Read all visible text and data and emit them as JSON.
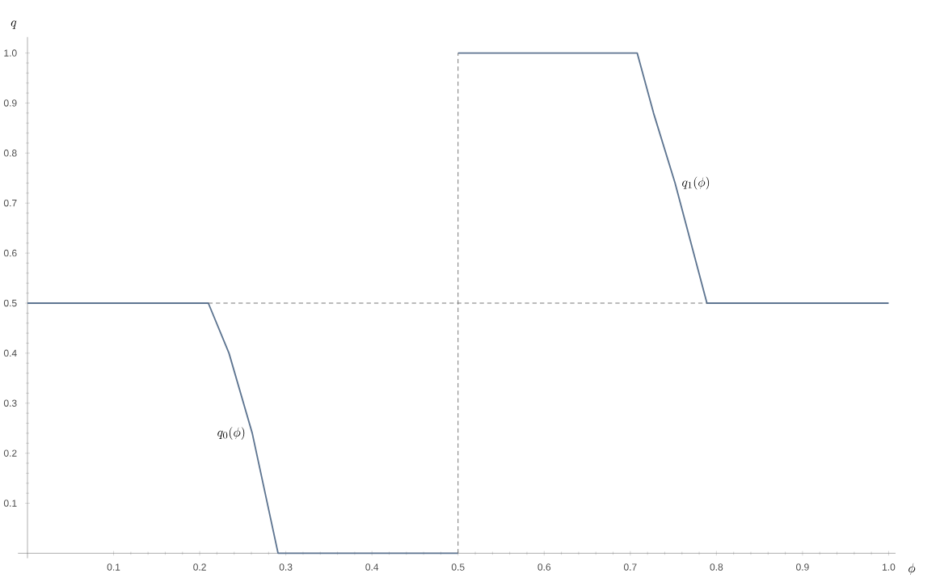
{
  "chart_data": {
    "type": "line",
    "xlabel": "\\phi",
    "ylabel": "q",
    "xlim": [
      -0.011,
      1.008
    ],
    "ylim": [
      -0.01,
      1.032
    ],
    "xticks": [
      0.1,
      0.2,
      0.3,
      0.4,
      0.5,
      0.6,
      0.7,
      0.8,
      0.9,
      {
        "value": 1,
        "label": "1.0"
      }
    ],
    "yticks": [
      0.1,
      0.2,
      0.3,
      0.4,
      0.5,
      0.6,
      0.7,
      0.8,
      0.9,
      {
        "value": 1,
        "label": "1.0"
      }
    ],
    "series": [
      {
        "color": "#5e7591",
        "line_style": "solid",
        "x": [
          0,
          0.21,
          0.234,
          0.261,
          0.291,
          0.5
        ],
        "values": [
          0.5,
          0.5,
          0.4,
          0.24,
          0,
          0
        ]
      },
      {
        "color": "#5e7591",
        "line_style": "solid",
        "x": [
          0.5,
          0.708,
          0.727,
          0.752,
          0.789,
          1.0
        ],
        "values": [
          1.0,
          1.0,
          0.88,
          0.74,
          0.5,
          0.5
        ]
      },
      {
        "color": "#555555",
        "line_style": "dashed",
        "x": [
          0.21,
          0.789
        ],
        "values": [
          0.5,
          0.5
        ]
      },
      {
        "color": "#555555",
        "line_style": "dashed",
        "x": [
          0.5,
          0.5
        ],
        "values": [
          0,
          1.0
        ]
      }
    ],
    "annotations": [
      "q_0(\\phi)",
      "q_1(\\phi)"
    ]
  }
}
